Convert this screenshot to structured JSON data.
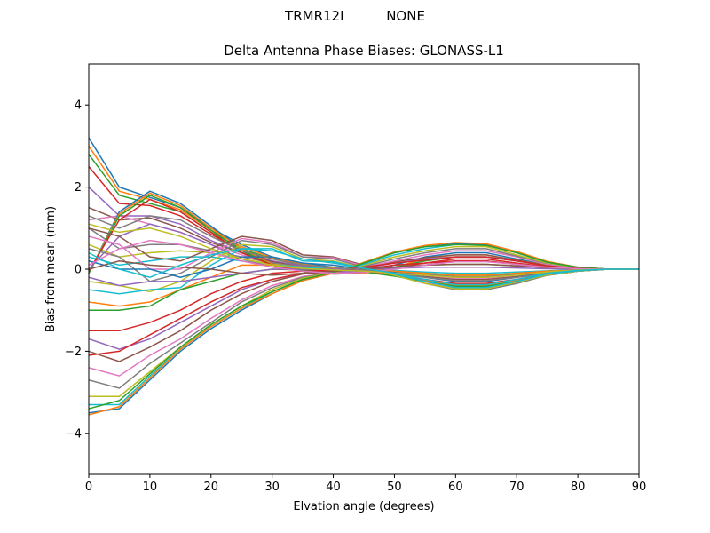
{
  "suptitle_left": "TRMR12I",
  "suptitle_right": "NONE",
  "chart_data": {
    "type": "line",
    "title": "Delta Antenna Phase Biases: GLONASS-L1",
    "xlabel": "Elvation angle (degrees)",
    "ylabel": "Bias from mean (mm)",
    "xlim": [
      0,
      90
    ],
    "ylim": [
      -5,
      5
    ],
    "xticks": [
      0,
      10,
      20,
      30,
      40,
      50,
      60,
      70,
      80,
      90
    ],
    "yticks": [
      -4,
      -2,
      0,
      2,
      4
    ],
    "grid": false,
    "legend": "none",
    "x": [
      0,
      5,
      10,
      15,
      20,
      25,
      30,
      35,
      40,
      45,
      50,
      55,
      60,
      65,
      70,
      75,
      80,
      85,
      90
    ],
    "colors": [
      "#1f77b4",
      "#ff7f0e",
      "#2ca02c",
      "#d62728",
      "#9467bd",
      "#8c564b",
      "#e377c2",
      "#7f7f7f",
      "#bcbd22",
      "#17becf"
    ],
    "series": [
      {
        "values": [
          3.2,
          2.0,
          1.75,
          1.5,
          1.0,
          0.6,
          0.3,
          0.15,
          0.05,
          -0.05,
          -0.15,
          -0.3,
          -0.45,
          -0.45,
          -0.3,
          -0.15,
          -0.05,
          0.0,
          0.0
        ]
      },
      {
        "values": [
          3.0,
          1.9,
          1.7,
          1.45,
          0.95,
          0.55,
          0.28,
          0.12,
          0.03,
          -0.05,
          -0.15,
          -0.28,
          -0.4,
          -0.4,
          -0.28,
          -0.14,
          -0.05,
          0.0,
          0.0
        ]
      },
      {
        "values": [
          2.8,
          1.8,
          1.6,
          1.4,
          0.9,
          0.5,
          0.25,
          0.1,
          0.0,
          -0.07,
          -0.17,
          -0.3,
          -0.42,
          -0.42,
          -0.3,
          -0.15,
          -0.05,
          0.0,
          0.0
        ]
      },
      {
        "values": [
          2.5,
          1.6,
          1.55,
          1.3,
          0.85,
          0.45,
          0.2,
          0.08,
          0.0,
          -0.05,
          -0.12,
          -0.25,
          -0.35,
          -0.35,
          -0.25,
          -0.12,
          -0.04,
          0.0,
          0.0
        ]
      },
      {
        "values": [
          2.0,
          1.3,
          1.3,
          1.1,
          0.7,
          0.4,
          0.2,
          0.07,
          0.0,
          -0.05,
          -0.1,
          -0.2,
          -0.3,
          -0.3,
          -0.2,
          -0.1,
          -0.03,
          0.0,
          0.0
        ]
      },
      {
        "values": [
          1.5,
          1.2,
          1.25,
          1.0,
          0.65,
          0.4,
          0.18,
          0.05,
          -0.02,
          -0.05,
          -0.1,
          -0.18,
          -0.25,
          -0.25,
          -0.18,
          -0.09,
          -0.03,
          0.0,
          0.0
        ]
      },
      {
        "values": [
          1.2,
          1.3,
          1.1,
          0.9,
          0.6,
          0.35,
          0.15,
          0.05,
          -0.02,
          -0.05,
          -0.1,
          -0.15,
          -0.22,
          -0.22,
          -0.15,
          -0.07,
          -0.02,
          0.0,
          0.0
        ]
      },
      {
        "values": [
          1.0,
          0.5,
          0.6,
          0.6,
          0.45,
          0.3,
          0.15,
          0.05,
          0.0,
          -0.03,
          -0.08,
          -0.12,
          -0.18,
          -0.18,
          -0.12,
          -0.06,
          -0.02,
          0.0,
          0.0
        ]
      },
      {
        "values": [
          0.6,
          0.3,
          0.4,
          0.45,
          0.4,
          0.25,
          0.12,
          0.05,
          0.0,
          0.0,
          -0.05,
          -0.1,
          -0.15,
          -0.15,
          -0.1,
          -0.05,
          -0.02,
          0.0,
          0.0
        ]
      },
      {
        "values": [
          0.3,
          0.1,
          0.2,
          0.3,
          0.3,
          0.2,
          0.1,
          0.05,
          0.0,
          0.0,
          -0.03,
          -0.07,
          -0.1,
          -0.1,
          -0.07,
          -0.04,
          -0.01,
          0.0,
          0.0
        ]
      },
      {
        "values": [
          -0.1,
          1.4,
          1.9,
          1.6,
          1.05,
          0.5,
          0.1,
          -0.05,
          -0.12,
          -0.1,
          0.1,
          0.3,
          0.4,
          0.4,
          0.25,
          0.1,
          0.02,
          0.0,
          0.0
        ]
      },
      {
        "values": [
          -0.1,
          1.35,
          1.85,
          1.55,
          1.0,
          0.5,
          0.12,
          -0.05,
          -0.12,
          -0.1,
          0.05,
          0.25,
          0.35,
          0.35,
          0.22,
          0.1,
          0.02,
          0.0,
          0.0
        ]
      },
      {
        "values": [
          -0.1,
          1.3,
          1.8,
          1.5,
          0.95,
          0.45,
          0.1,
          -0.05,
          -0.1,
          -0.08,
          0.05,
          0.2,
          0.3,
          0.3,
          0.2,
          0.08,
          0.02,
          0.0,
          0.0
        ]
      },
      {
        "values": [
          -0.05,
          1.2,
          1.7,
          1.4,
          0.9,
          0.4,
          0.1,
          -0.03,
          -0.1,
          -0.08,
          0.03,
          0.15,
          0.25,
          0.25,
          0.15,
          0.06,
          0.02,
          0.0,
          0.0
        ]
      },
      {
        "values": [
          0.0,
          0.8,
          1.1,
          0.9,
          0.6,
          0.25,
          0.05,
          -0.03,
          -0.08,
          -0.05,
          0.02,
          0.1,
          0.2,
          0.2,
          0.12,
          0.05,
          0.01,
          0.0,
          0.0
        ]
      },
      {
        "values": [
          1.0,
          0.8,
          0.3,
          0.2,
          0.5,
          0.8,
          0.7,
          0.35,
          0.3,
          0.1,
          -0.1,
          -0.3,
          -0.5,
          -0.5,
          -0.35,
          -0.15,
          -0.05,
          0.0,
          0.0
        ]
      },
      {
        "values": [
          0.8,
          0.6,
          0.0,
          0.0,
          0.4,
          0.75,
          0.65,
          0.3,
          0.28,
          0.08,
          -0.12,
          -0.3,
          -0.48,
          -0.48,
          -0.32,
          -0.14,
          -0.05,
          0.0,
          0.0
        ]
      },
      {
        "values": [
          0.5,
          0.3,
          -0.3,
          -0.1,
          0.3,
          0.7,
          0.6,
          0.3,
          0.25,
          0.05,
          -0.15,
          -0.35,
          -0.5,
          -0.5,
          -0.35,
          -0.15,
          -0.05,
          0.0,
          0.0
        ]
      },
      {
        "values": [
          -0.3,
          -0.4,
          -0.55,
          -0.3,
          0.2,
          0.6,
          0.55,
          0.25,
          0.2,
          0.03,
          -0.15,
          -0.35,
          -0.48,
          -0.48,
          -0.32,
          -0.14,
          -0.05,
          0.0,
          0.0
        ]
      },
      {
        "values": [
          -0.5,
          -0.6,
          -0.5,
          -0.45,
          0.1,
          0.5,
          0.5,
          0.2,
          0.18,
          0.02,
          -0.12,
          -0.3,
          -0.45,
          -0.45,
          -0.3,
          -0.12,
          -0.04,
          0.0,
          0.0
        ]
      },
      {
        "values": [
          0.2,
          0.0,
          0.0,
          -0.2,
          0.0,
          0.3,
          0.3,
          0.15,
          0.1,
          0.0,
          -0.08,
          -0.2,
          -0.3,
          -0.3,
          -0.2,
          -0.08,
          -0.03,
          0.0,
          0.0
        ]
      },
      {
        "values": [
          -0.8,
          -0.9,
          -0.8,
          -0.5,
          -0.2,
          0.1,
          0.1,
          0.0,
          0.0,
          0.0,
          -0.05,
          -0.1,
          -0.15,
          -0.15,
          -0.1,
          -0.05,
          -0.02,
          0.0,
          0.0
        ]
      },
      {
        "values": [
          -1.0,
          -1.0,
          -0.9,
          -0.5,
          -0.3,
          -0.1,
          0.0,
          -0.02,
          -0.02,
          0.0,
          0.05,
          0.1,
          0.12,
          0.12,
          0.08,
          0.04,
          0.01,
          0.0,
          0.0
        ]
      },
      {
        "values": [
          -1.5,
          -1.5,
          -1.3,
          -1.0,
          -0.6,
          -0.3,
          -0.1,
          -0.05,
          -0.03,
          0.0,
          0.1,
          0.15,
          0.2,
          0.2,
          0.12,
          0.05,
          0.02,
          0.0,
          0.0
        ]
      },
      {
        "values": [
          -1.7,
          -1.95,
          -1.7,
          -1.3,
          -0.9,
          -0.5,
          -0.25,
          -0.1,
          -0.05,
          0.02,
          0.15,
          0.25,
          0.3,
          0.3,
          0.2,
          0.08,
          0.02,
          0.0,
          0.0
        ]
      },
      {
        "values": [
          -2.0,
          -2.25,
          -1.9,
          -1.5,
          -1.0,
          -0.6,
          -0.3,
          -0.12,
          -0.06,
          0.02,
          0.18,
          0.28,
          0.35,
          0.35,
          0.22,
          0.09,
          0.03,
          0.0,
          0.0
        ]
      },
      {
        "values": [
          -2.4,
          -2.6,
          -2.1,
          -1.7,
          -1.2,
          -0.75,
          -0.4,
          -0.18,
          -0.08,
          0.05,
          0.2,
          0.35,
          0.45,
          0.45,
          0.3,
          0.12,
          0.03,
          0.0,
          0.0
        ]
      },
      {
        "values": [
          -2.7,
          -2.9,
          -2.3,
          -1.8,
          -1.3,
          -0.8,
          -0.45,
          -0.2,
          -0.08,
          0.07,
          0.25,
          0.4,
          0.5,
          0.5,
          0.32,
          0.14,
          0.04,
          0.0,
          0.0
        ]
      },
      {
        "values": [
          -3.1,
          -3.1,
          -2.5,
          -1.9,
          -1.35,
          -0.9,
          -0.5,
          -0.22,
          -0.08,
          0.1,
          0.3,
          0.45,
          0.55,
          0.55,
          0.35,
          0.15,
          0.04,
          0.0,
          0.0
        ]
      },
      {
        "values": [
          -3.3,
          -3.3,
          -2.6,
          -1.95,
          -1.4,
          -0.95,
          -0.55,
          -0.25,
          -0.1,
          0.12,
          0.35,
          0.5,
          0.6,
          0.6,
          0.4,
          0.17,
          0.05,
          0.0,
          0.0
        ]
      },
      {
        "values": [
          -3.5,
          -3.4,
          -2.7,
          -2.0,
          -1.45,
          -1.0,
          -0.6,
          -0.28,
          -0.1,
          0.15,
          0.4,
          0.55,
          0.62,
          0.6,
          0.42,
          0.18,
          0.05,
          0.0,
          0.0
        ]
      },
      {
        "values": [
          -3.55,
          -3.35,
          -2.65,
          -1.95,
          -1.4,
          -0.95,
          -0.6,
          -0.28,
          -0.1,
          0.17,
          0.42,
          0.58,
          0.65,
          0.62,
          0.43,
          0.19,
          0.05,
          0.0,
          0.0
        ]
      },
      {
        "values": [
          -3.4,
          -3.2,
          -2.55,
          -1.9,
          -1.35,
          -0.9,
          -0.55,
          -0.25,
          -0.08,
          0.15,
          0.4,
          0.55,
          0.6,
          0.58,
          0.4,
          0.17,
          0.05,
          0.0,
          0.0
        ]
      },
      {
        "values": [
          -2.1,
          -2.0,
          -1.6,
          -1.2,
          -0.8,
          -0.45,
          -0.25,
          -0.1,
          -0.03,
          0.05,
          0.15,
          0.22,
          0.3,
          0.3,
          0.2,
          0.08,
          0.02,
          0.0,
          0.0
        ]
      },
      {
        "values": [
          -0.2,
          -0.4,
          -0.3,
          -0.3,
          -0.2,
          -0.1,
          0.0,
          0.0,
          0.0,
          0.0,
          0.02,
          0.05,
          0.05,
          0.05,
          0.03,
          0.01,
          0.0,
          0.0,
          0.0
        ]
      },
      {
        "values": [
          0.0,
          0.2,
          0.1,
          0.05,
          0.0,
          -0.1,
          -0.15,
          -0.1,
          -0.05,
          0.0,
          0.05,
          0.1,
          0.12,
          0.12,
          0.08,
          0.04,
          0.01,
          0.0,
          0.0
        ]
      },
      {
        "values": [
          0.1,
          0.5,
          0.7,
          0.6,
          0.4,
          0.2,
          0.05,
          -0.05,
          -0.1,
          -0.08,
          0.0,
          0.1,
          0.18,
          0.18,
          0.12,
          0.05,
          0.01,
          0.0,
          0.0
        ]
      },
      {
        "values": [
          1.3,
          1.0,
          1.3,
          1.2,
          0.8,
          0.45,
          0.25,
          0.1,
          0.05,
          -0.02,
          -0.1,
          -0.2,
          -0.28,
          -0.28,
          -0.2,
          -0.1,
          -0.03,
          0.0,
          0.0
        ]
      },
      {
        "values": [
          1.1,
          0.9,
          1.0,
          0.8,
          0.5,
          0.25,
          0.1,
          0.02,
          -0.02,
          -0.05,
          -0.1,
          -0.15,
          -0.2,
          -0.2,
          -0.15,
          -0.07,
          -0.02,
          0.0,
          0.0
        ]
      },
      {
        "values": [
          0.4,
          0.0,
          -0.2,
          0.1,
          0.35,
          0.5,
          0.45,
          0.25,
          0.15,
          0.02,
          -0.1,
          -0.25,
          -0.38,
          -0.38,
          -0.25,
          -0.1,
          -0.03,
          0.0,
          0.0
        ]
      }
    ]
  }
}
